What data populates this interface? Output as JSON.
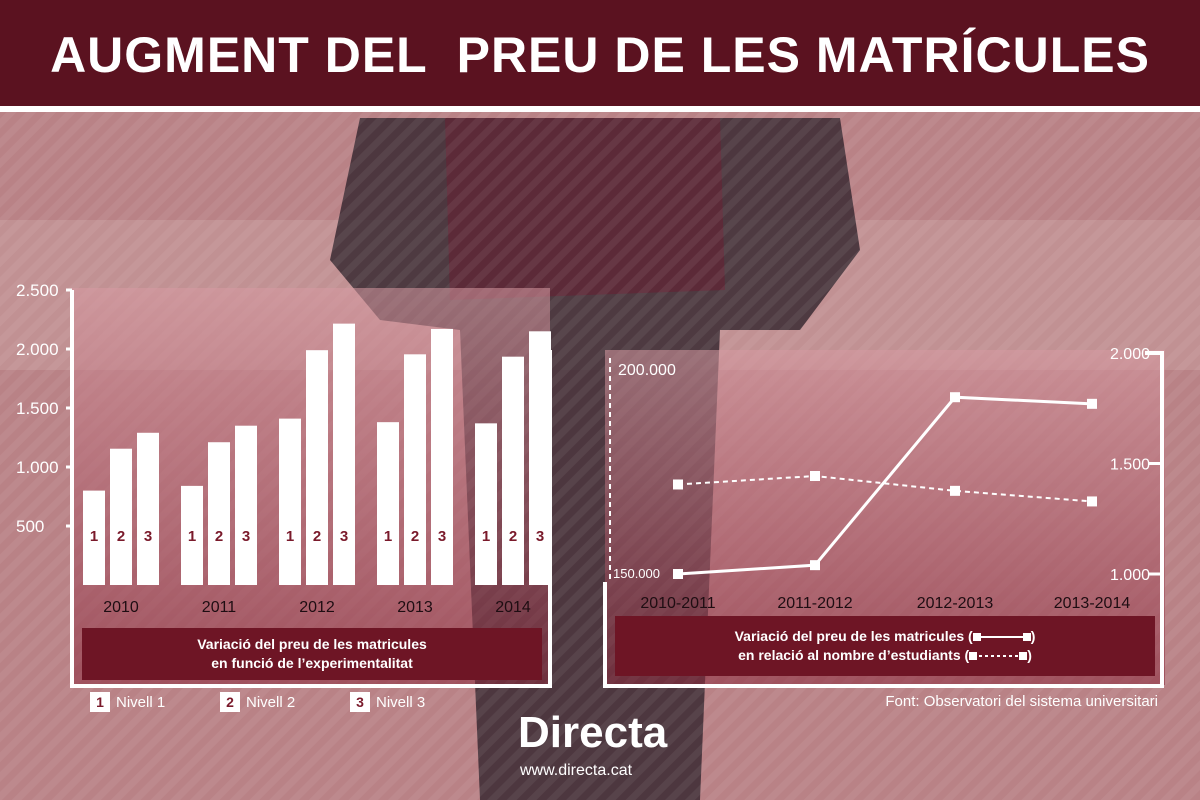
{
  "title": "AUGMENT DEL  PREU DE LES MATRÍCULES",
  "colors": {
    "header": "#5b1220",
    "accent": "#6e1525",
    "bars": "#ffffff",
    "chart_bg_top": "#d79aa2",
    "chart_bg_bottom": "#8a2a3d"
  },
  "chart_data": [
    {
      "type": "bar",
      "categories": [
        "2010",
        "2011",
        "2012",
        "2013",
        "2014"
      ],
      "series": [
        {
          "name": "Nivell 1",
          "label": "1",
          "values": [
            800,
            840,
            1410,
            1380,
            1370
          ]
        },
        {
          "name": "Nivell 2",
          "label": "2",
          "values": [
            1155,
            1210,
            1990,
            1955,
            1935
          ]
        },
        {
          "name": "Nivell 3",
          "label": "3",
          "values": [
            1290,
            1350,
            2215,
            2170,
            2150
          ]
        }
      ],
      "yticks": [
        "2.500",
        "2.000",
        "1.500",
        "1.000",
        "500"
      ],
      "ytick_values": [
        2500,
        2000,
        1500,
        1000,
        500
      ],
      "ylim": [
        0,
        2500
      ],
      "caption": [
        "Variació del preu de les matricules",
        "en funció de l’experimentalitat"
      ],
      "legend": [
        "Nivell 1",
        "Nivell 2",
        "Nivell 3"
      ]
    },
    {
      "type": "line",
      "categories": [
        "2010-2011",
        "2011-2012",
        "2012-2013",
        "2013-2014"
      ],
      "series": [
        {
          "name": "Variació del preu de les matricules",
          "style": "solid",
          "axis": "right",
          "values": [
            1000,
            1040,
            1800,
            1770
          ]
        },
        {
          "name": "nombre d’estudiants",
          "style": "dashed",
          "axis": "left",
          "values": [
            173000,
            175000,
            171500,
            169000
          ]
        }
      ],
      "left_axis": {
        "ticks": [
          "200.000",
          "150.000"
        ],
        "tick_values": [
          200000,
          150000
        ],
        "range": [
          150000,
          200000
        ]
      },
      "right_axis": {
        "ticks": [
          "2.000",
          "1.500",
          "1.000"
        ],
        "tick_values": [
          2000,
          1500,
          1000
        ],
        "range": [
          1000,
          2000
        ]
      },
      "caption": [
        "Variació del preu de les matricules (",
        ")",
        "en relació al nombre d’estudiants (",
        ")"
      ]
    }
  ],
  "source": "Font: Observatori del sistema universitari",
  "logo": "Directa",
  "url": "www.directa.cat"
}
